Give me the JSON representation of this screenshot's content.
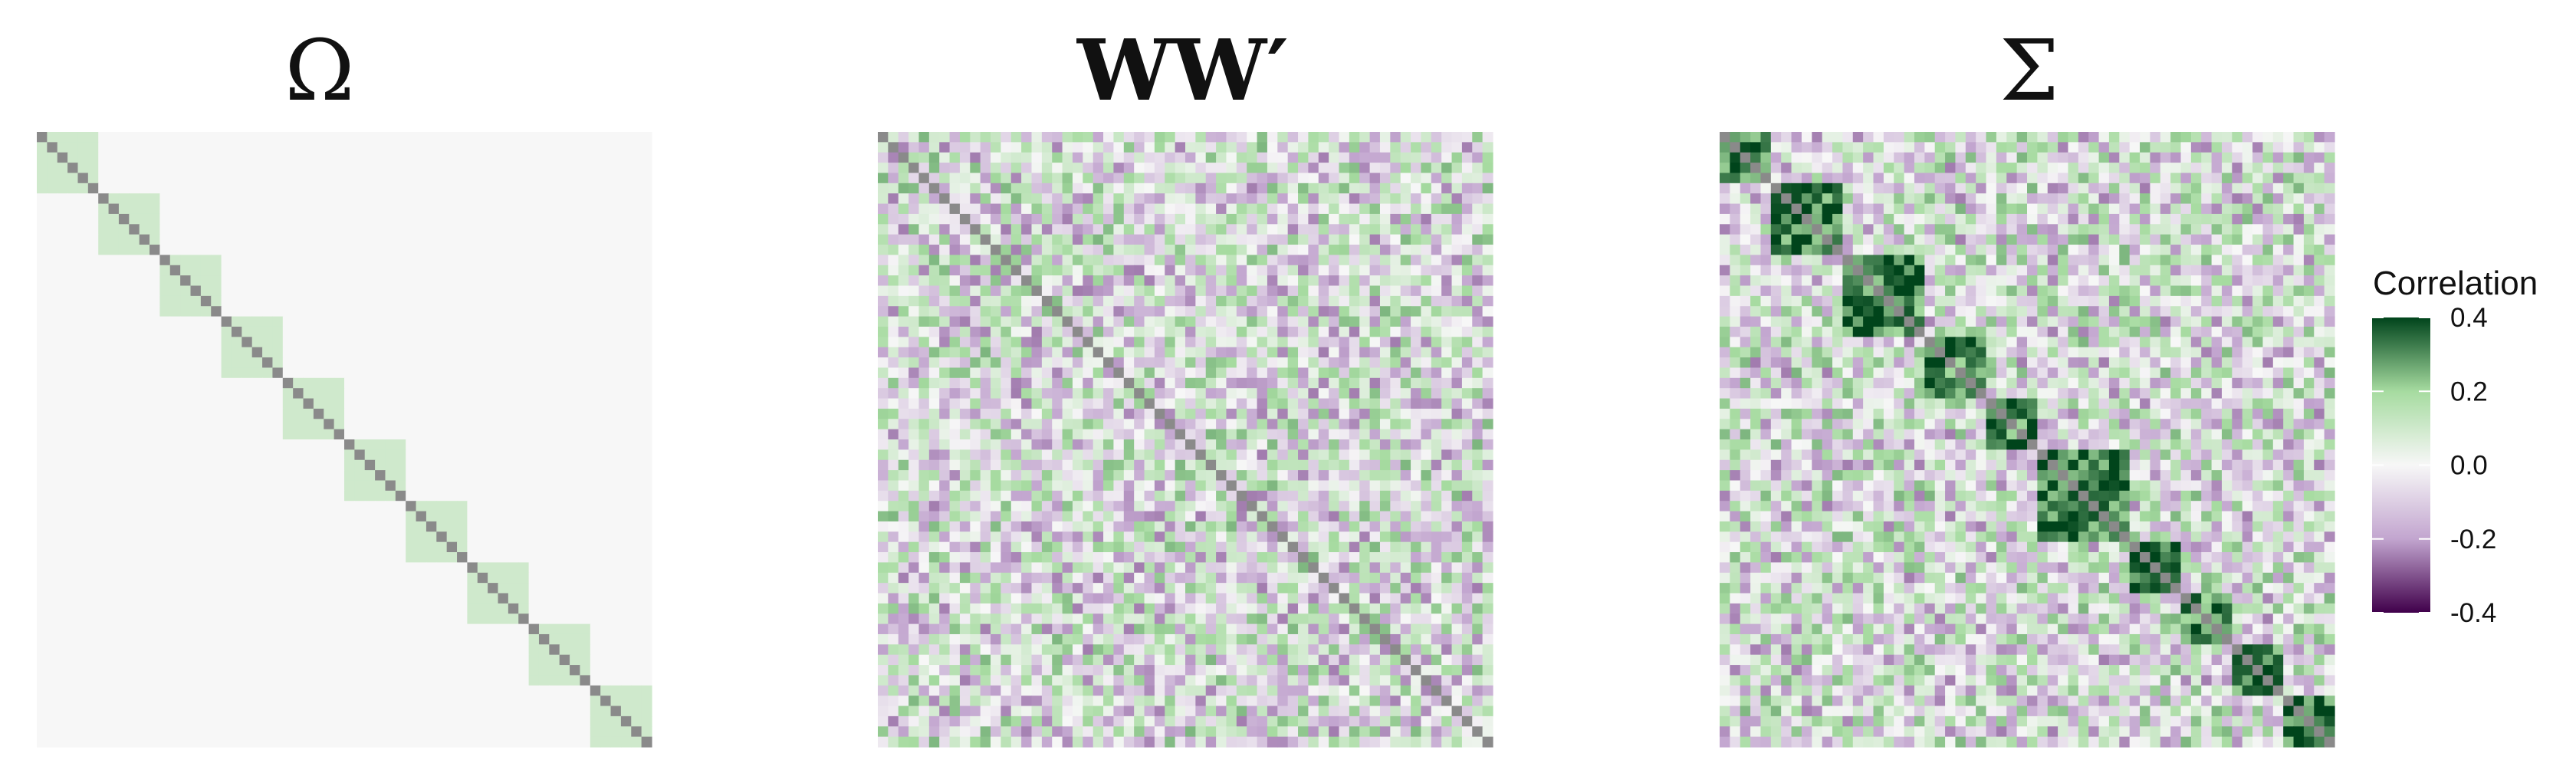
{
  "chart_data": [
    {
      "type": "heatmap",
      "title": "Ω",
      "n": 60,
      "structure": "block-diagonal",
      "block_size": 6,
      "diagonal_value": 1,
      "within_block_value": 0.1,
      "off_block_value": 0
    },
    {
      "type": "heatmap",
      "title": "WW′",
      "n": 60,
      "structure": "dense-random-symmetric",
      "diagonal_value": 1,
      "off_diagonal_range": [
        -0.25,
        0.25
      ]
    },
    {
      "type": "heatmap",
      "title": "Σ",
      "n": 60,
      "structure": "block-diagonal-plus-random",
      "diagonal_value": 1,
      "block_sizes": [
        5,
        7,
        8,
        6,
        5,
        9,
        5,
        5,
        5,
        5
      ],
      "within_block_range": [
        0.2,
        0.45
      ],
      "off_diagonal_range": [
        -0.25,
        0.25
      ]
    }
  ],
  "legend": {
    "title": "Correlation",
    "ticks": [
      "0.4",
      "0.2",
      "0.0",
      "-0.2",
      "-0.4"
    ],
    "range": [
      -0.4,
      0.4
    ]
  },
  "colors": {
    "low": "#40004b",
    "mid_low": "#c2a5cf",
    "mid": "#f7f7f7",
    "mid_high": "#a6dba0",
    "high": "#00441b",
    "diagonal": "#8a8a8a"
  }
}
